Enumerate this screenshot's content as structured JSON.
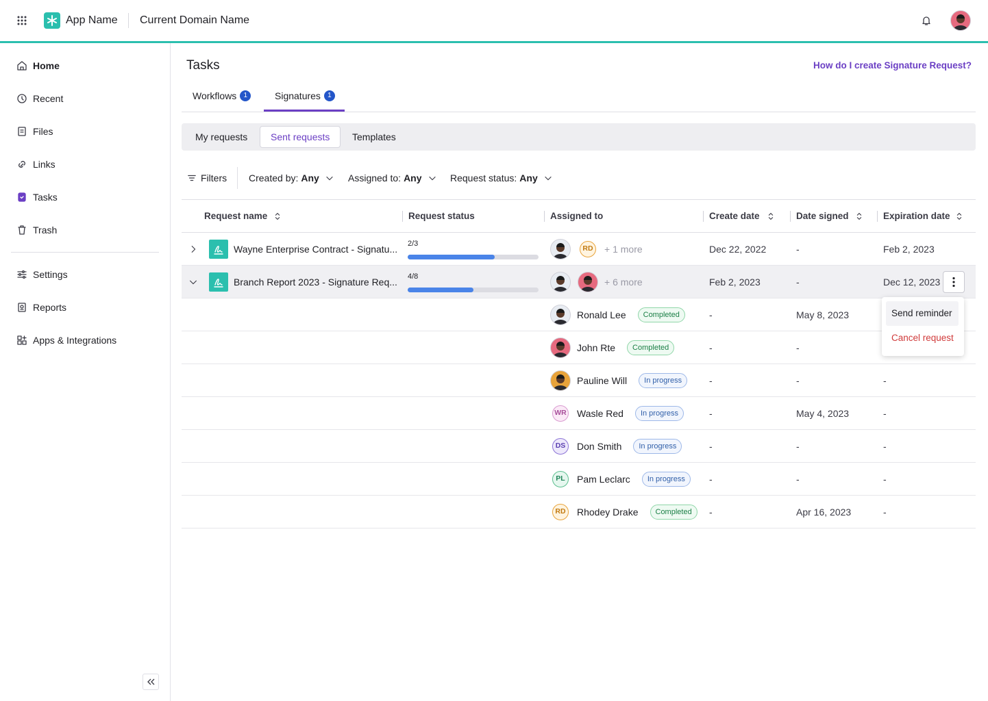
{
  "header": {
    "app_name": "App Name",
    "domain": "Current Domain Name"
  },
  "sidebar": {
    "items": [
      "Home",
      "Recent",
      "Files",
      "Links",
      "Tasks",
      "Trash"
    ],
    "secondary": [
      "Settings",
      "Reports",
      "Apps & Integrations"
    ]
  },
  "page": {
    "title": "Tasks",
    "help_link": "How do I create Signature Request?"
  },
  "tabs": [
    {
      "label": "Workflows",
      "count": 1
    },
    {
      "label": "Signatures",
      "count": 1
    }
  ],
  "subtabs": [
    "My requests",
    "Sent requests",
    "Templates"
  ],
  "filters": {
    "label": "Filters",
    "items": [
      {
        "label": "Created by:",
        "value": "Any"
      },
      {
        "label": "Assigned to:",
        "value": "Any"
      },
      {
        "label": "Request status:",
        "value": "Any"
      }
    ]
  },
  "table": {
    "columns": [
      "Request name",
      "Request status",
      "Assigned to",
      "Create date",
      "Date signed",
      "Expiration date"
    ],
    "rows": [
      {
        "name": "Wayne Enterprise Contract - Signatu...",
        "progress": "2/3",
        "initials": "RD",
        "more": "+ 1 more",
        "create_date": "Dec 22, 2022",
        "date_signed": "-",
        "expiration_date": "Feb 2, 2023"
      },
      {
        "name": "Branch Report 2023 - Signature Req...",
        "progress": "4/8",
        "more": "+ 6 more",
        "create_date": "Feb 2, 2023",
        "date_signed": "-",
        "expiration_date": "Dec 12, 2023"
      }
    ],
    "signers": [
      {
        "name": "Ronald Lee",
        "status": "Completed",
        "create_date": "-",
        "date_signed": "May 8, 2023"
      },
      {
        "name": "John Rte",
        "status": "Completed",
        "create_date": "-",
        "date_signed": "-"
      },
      {
        "name": "Pauline Will",
        "status": "In progress",
        "create_date": "-",
        "date_signed": "-",
        "expiration_date": "-"
      },
      {
        "initials": "WR",
        "name": "Wasle Red",
        "status": "In progress",
        "create_date": "-",
        "date_signed": "May 4, 2023",
        "expiration_date": "-"
      },
      {
        "initials": "DS",
        "name": "Don Smith",
        "status": "In progress",
        "create_date": "-",
        "date_signed": "-",
        "expiration_date": "-"
      },
      {
        "initials": "PL",
        "name": "Pam Leclarc",
        "status": "In progress",
        "create_date": "-",
        "date_signed": "-",
        "expiration_date": "-"
      },
      {
        "initials": "RD",
        "name": "Rhodey Drake",
        "status": "Completed",
        "create_date": "-",
        "date_signed": "Apr 16, 2023",
        "expiration_date": "-"
      }
    ]
  },
  "menu": [
    "Send reminder",
    "Cancel request"
  ]
}
